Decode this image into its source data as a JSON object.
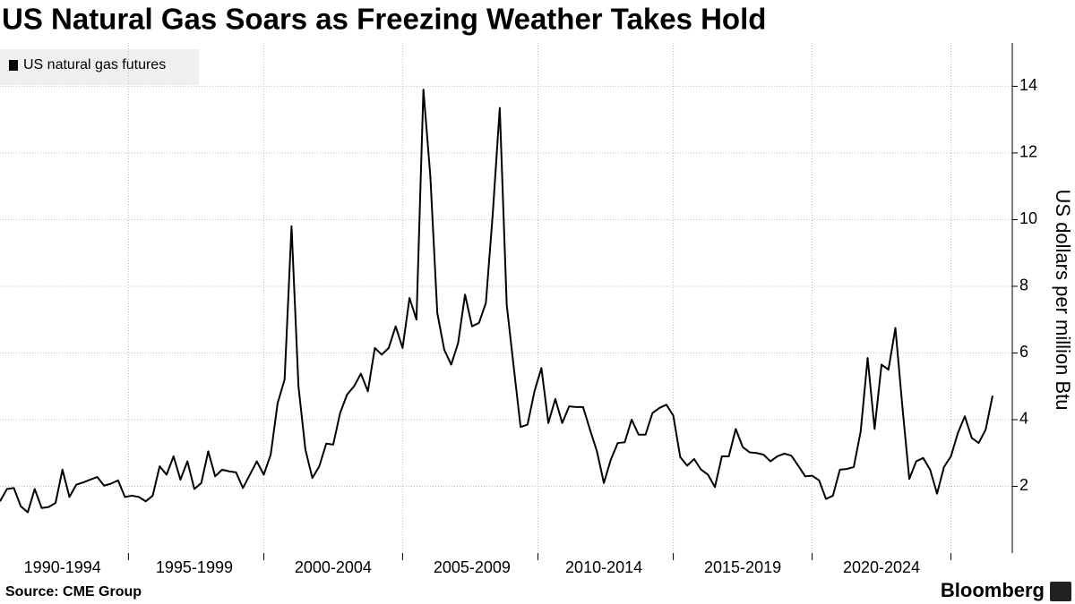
{
  "chart_data": {
    "type": "line",
    "title": "US Natural Gas Soars as Freezing Weather Takes Hold",
    "y_label": "US dollars per million Btu",
    "source": "Source: CME Group",
    "branding": "Bloomberg",
    "legend": "top-left",
    "grid": true,
    "ylim": [
      0,
      15.3
    ],
    "yticks": [
      2,
      4,
      6,
      8,
      10,
      12,
      14
    ],
    "categories": [
      null,
      null,
      null,
      null,
      null,
      null,
      null,
      null,
      null,
      "1990-1994",
      null,
      null,
      null,
      null,
      null,
      null,
      null,
      null,
      null,
      null,
      null,
      null,
      null,
      null,
      null,
      null,
      null,
      null,
      "1995-1999",
      null,
      null,
      null,
      null,
      null,
      null,
      null,
      null,
      null,
      null,
      null,
      null,
      null,
      null,
      null,
      null,
      null,
      null,
      null,
      "2000-2004",
      null,
      null,
      null,
      null,
      null,
      null,
      null,
      null,
      null,
      null,
      null,
      null,
      null,
      null,
      null,
      null,
      null,
      null,
      null,
      "2005-2009",
      null,
      null,
      null,
      null,
      null,
      null,
      null,
      null,
      null,
      null,
      null,
      null,
      null,
      null,
      null,
      null,
      null,
      null,
      "2010-2014",
      null,
      null,
      null,
      null,
      null,
      null,
      null,
      null,
      null,
      null,
      null,
      null,
      null,
      null,
      null,
      null,
      null,
      null,
      null,
      "2015-2019",
      null,
      null,
      null,
      null,
      null,
      null,
      null,
      null,
      null,
      null,
      null,
      null,
      null,
      null,
      null,
      null,
      null,
      null,
      null,
      "2020-2024",
      null,
      null,
      null,
      null,
      null,
      null,
      null,
      null,
      null,
      null,
      null,
      null,
      null,
      null,
      null,
      null
    ],
    "series": [
      {
        "name": "US natural gas futures",
        "color": "#000000",
        "values": [
          1.55,
          1.92,
          1.95,
          1.4,
          1.22,
          1.92,
          1.35,
          1.38,
          1.5,
          2.5,
          1.68,
          2.05,
          2.12,
          2.2,
          2.28,
          2.02,
          2.08,
          2.18,
          1.68,
          1.72,
          1.68,
          1.55,
          1.72,
          2.6,
          2.35,
          2.9,
          2.2,
          2.75,
          1.92,
          2.1,
          3.05,
          2.3,
          2.5,
          2.45,
          2.42,
          1.95,
          2.35,
          2.75,
          2.35,
          2.95,
          4.5,
          5.2,
          9.8,
          5.0,
          3.1,
          2.25,
          2.6,
          3.28,
          3.25,
          4.2,
          4.75,
          5.0,
          5.38,
          4.85,
          6.15,
          5.95,
          6.15,
          6.8,
          6.15,
          7.65,
          7.0,
          13.9,
          11.3,
          7.2,
          6.1,
          5.65,
          6.3,
          7.75,
          6.8,
          6.9,
          7.5,
          10.2,
          13.35,
          7.45,
          5.6,
          3.78,
          3.85,
          4.85,
          5.55,
          3.9,
          4.62,
          3.9,
          4.4,
          4.38,
          4.38,
          3.7,
          3.05,
          2.1,
          2.8,
          3.3,
          3.32,
          4.0,
          3.55,
          3.55,
          4.2,
          4.35,
          4.45,
          4.12,
          2.88,
          2.62,
          2.82,
          2.5,
          2.35,
          1.98,
          2.9,
          2.9,
          3.72,
          3.18,
          3.02,
          3.0,
          2.95,
          2.75,
          2.9,
          2.98,
          2.92,
          2.62,
          2.3,
          2.32,
          2.18,
          1.62,
          1.72,
          2.5,
          2.52,
          2.58,
          3.65,
          5.85,
          3.72,
          5.65,
          5.5,
          6.75,
          4.4,
          2.22,
          2.75,
          2.85,
          2.5,
          1.78,
          2.58,
          2.9,
          3.6,
          4.1,
          3.45,
          3.3,
          3.7,
          4.72
        ]
      }
    ]
  }
}
